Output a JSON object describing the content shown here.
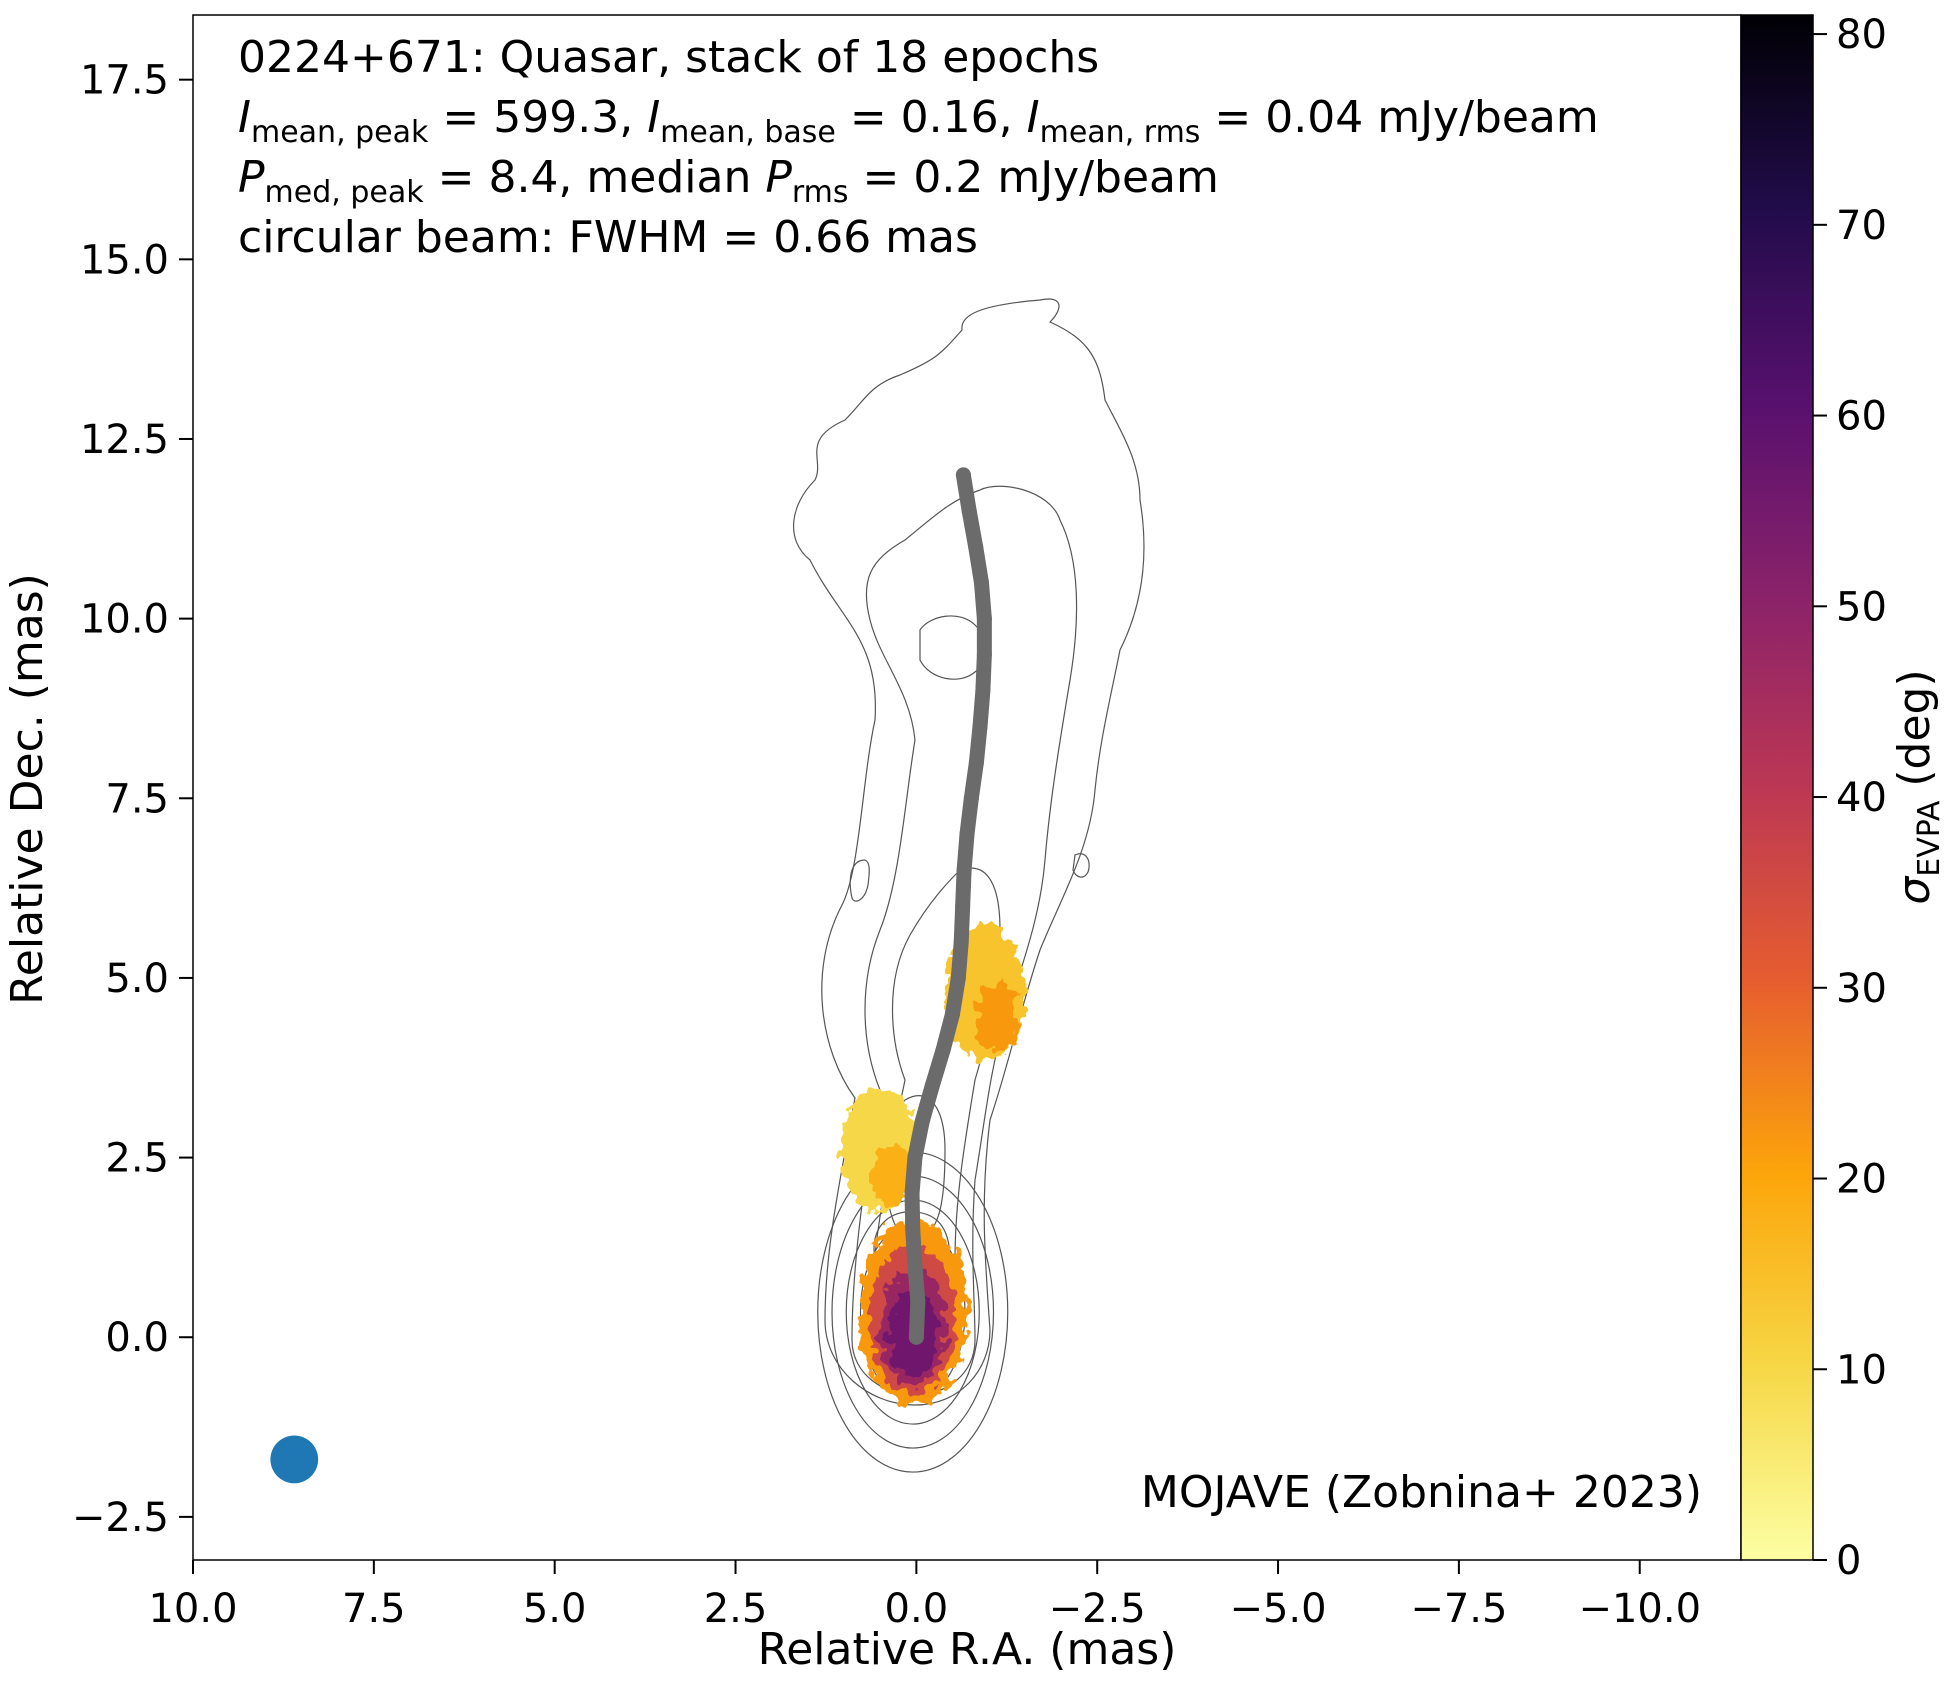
{
  "chart_data": {
    "type": "scatter",
    "annotation_lines": [
      {
        "parts": [
          {
            "t": "0224+671: Quasar, stack of 18 epochs"
          }
        ]
      },
      {
        "parts": [
          {
            "t": "I",
            "italic": true
          },
          {
            "t": "mean, peak",
            "sub": true
          },
          {
            "t": " = 599.3, "
          },
          {
            "t": "I",
            "italic": true
          },
          {
            "t": "mean, base",
            "sub": true
          },
          {
            "t": " = 0.16, "
          },
          {
            "t": "I",
            "italic": true
          },
          {
            "t": "mean, rms",
            "sub": true
          },
          {
            "t": " = 0.04 mJy/beam"
          }
        ]
      },
      {
        "parts": [
          {
            "t": "P",
            "italic": true
          },
          {
            "t": "med, peak",
            "sub": true
          },
          {
            "t": " = 8.4, median "
          },
          {
            "t": "P",
            "italic": true
          },
          {
            "t": "rms",
            "sub": true
          },
          {
            "t": " = 0.2 mJy/beam"
          }
        ]
      },
      {
        "parts": [
          {
            "t": "circular beam: FWHM = 0.66 mas"
          }
        ]
      }
    ],
    "credit": "MOJAVE (Zobnina+ 2023)",
    "xlabel": "Relative R.A. (mas)",
    "ylabel": "Relative Dec. (mas)",
    "xlim": [
      10.0,
      -11.4
    ],
    "ylim": [
      -3.1,
      18.4
    ],
    "xticks": [
      10.0,
      7.5,
      5.0,
      2.5,
      0.0,
      -2.5,
      -5.0,
      -7.5,
      -10.0
    ],
    "xtick_labels": [
      "10.0",
      "7.5",
      "5.0",
      "2.5",
      "0.0",
      "−2.5",
      "−5.0",
      "−7.5",
      "−10.0"
    ],
    "yticks": [
      -2.5,
      0.0,
      2.5,
      5.0,
      7.5,
      10.0,
      12.5,
      15.0,
      17.5
    ],
    "ytick_labels": [
      "−2.5",
      "0.0",
      "2.5",
      "5.0",
      "7.5",
      "10.0",
      "12.5",
      "15.0",
      "17.5"
    ],
    "colorbar": {
      "label_symbol": "σ",
      "label_sub": "EVPA",
      "label_rest": " (deg)",
      "range": [
        0,
        81
      ],
      "ticks": [
        0,
        10,
        20,
        30,
        40,
        50,
        60,
        70,
        80
      ],
      "tick_labels": [
        "0",
        "10",
        "20",
        "30",
        "40",
        "50",
        "60",
        "70",
        "80"
      ],
      "colormap": "inferno_r",
      "stops": [
        "#fcffa4",
        "#f6d746",
        "#fca50a",
        "#e65d2f",
        "#bc3754",
        "#8a226a",
        "#57106e",
        "#210c4a",
        "#000004"
      ]
    },
    "beam": {
      "x": 8.6,
      "y": -1.7,
      "fwhm_mas": 0.66,
      "color": "#1f77b4"
    },
    "ridgeline": {
      "color": "#6b6b6b",
      "points": [
        [
          0.0,
          0.0
        ],
        [
          -0.02,
          0.5
        ],
        [
          0.02,
          1.0
        ],
        [
          0.05,
          1.5
        ],
        [
          0.06,
          2.0
        ],
        [
          0.02,
          2.5
        ],
        [
          -0.08,
          3.0
        ],
        [
          -0.22,
          3.5
        ],
        [
          -0.37,
          4.0
        ],
        [
          -0.5,
          4.5
        ],
        [
          -0.58,
          5.0
        ],
        [
          -0.62,
          5.5
        ],
        [
          -0.64,
          6.0
        ],
        [
          -0.66,
          6.5
        ],
        [
          -0.7,
          7.0
        ],
        [
          -0.76,
          7.5
        ],
        [
          -0.83,
          8.0
        ],
        [
          -0.88,
          8.5
        ],
        [
          -0.92,
          9.0
        ],
        [
          -0.94,
          9.5
        ],
        [
          -0.94,
          10.0
        ],
        [
          -0.9,
          10.5
        ],
        [
          -0.82,
          11.0
        ],
        [
          -0.73,
          11.5
        ],
        [
          -0.65,
          12.0
        ]
      ]
    },
    "evpa_regions": [
      {
        "name": "core",
        "cx": 0.05,
        "cy": 0.35,
        "rx": 0.75,
        "ry": 1.3,
        "value": 48
      },
      {
        "name": "inner-jet",
        "cx": 0.5,
        "cy": 2.6,
        "rx": 0.55,
        "ry": 0.85,
        "value": 10
      },
      {
        "name": "outer-jet",
        "cx": -0.95,
        "cy": 4.8,
        "rx": 0.55,
        "ry": 0.95,
        "value": 14
      }
    ],
    "grid": false,
    "legend": "none"
  }
}
